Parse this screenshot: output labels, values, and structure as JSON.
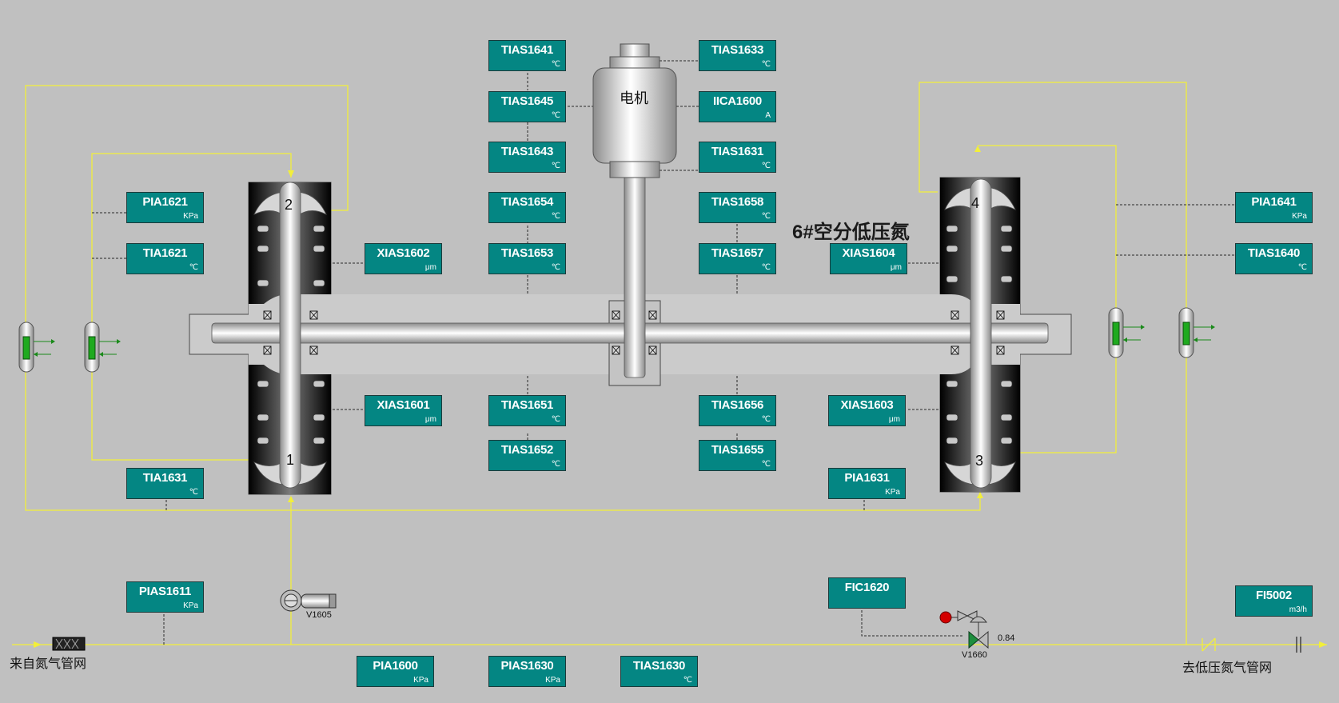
{
  "title": "6#空分低压氮",
  "inlet_label": "来自氮气管网",
  "outlet_label": "去低压氮气管网",
  "motor_label": "电机",
  "stage_numbers": [
    "1",
    "2",
    "3",
    "4"
  ],
  "valves": {
    "v1605": "V1605",
    "v1660": "V1660",
    "v1660_opening": "0.84"
  },
  "tags": [
    {
      "id": "TIAS1641",
      "unit": "℃"
    },
    {
      "id": "TIAS1645",
      "unit": "℃"
    },
    {
      "id": "TIAS1643",
      "unit": "℃"
    },
    {
      "id": "TIAS1654",
      "unit": "℃"
    },
    {
      "id": "TIAS1653",
      "unit": "℃"
    },
    {
      "id": "TIAS1633",
      "unit": "℃"
    },
    {
      "id": "IICA1600",
      "unit": "A"
    },
    {
      "id": "TIAS1631",
      "unit": "℃"
    },
    {
      "id": "TIAS1658",
      "unit": "℃"
    },
    {
      "id": "TIAS1657",
      "unit": "℃"
    },
    {
      "id": "PIA1621",
      "unit": "KPa"
    },
    {
      "id": "TIA1621",
      "unit": "℃"
    },
    {
      "id": "XIAS1602",
      "unit": "μm"
    },
    {
      "id": "XIAS1601",
      "unit": "μm"
    },
    {
      "id": "TIA1631",
      "unit": "℃"
    },
    {
      "id": "TIAS1651",
      "unit": "℃"
    },
    {
      "id": "TIAS1652",
      "unit": "℃"
    },
    {
      "id": "TIAS1656",
      "unit": "℃"
    },
    {
      "id": "TIAS1655",
      "unit": "℃"
    },
    {
      "id": "XIAS1604",
      "unit": "μm"
    },
    {
      "id": "XIAS1603",
      "unit": "μm"
    },
    {
      "id": "PIA1631",
      "unit": "KPa"
    },
    {
      "id": "PIA1641",
      "unit": "KPa"
    },
    {
      "id": "TIAS1640",
      "unit": "℃"
    },
    {
      "id": "PIAS1611",
      "unit": "KPa"
    },
    {
      "id": "FIC1620",
      "unit": ""
    },
    {
      "id": "FI5002",
      "unit": "m3/h"
    },
    {
      "id": "PIA1600",
      "unit": "KPa"
    },
    {
      "id": "PIAS1630",
      "unit": "KPa"
    },
    {
      "id": "TIAS1630",
      "unit": "℃"
    }
  ]
}
